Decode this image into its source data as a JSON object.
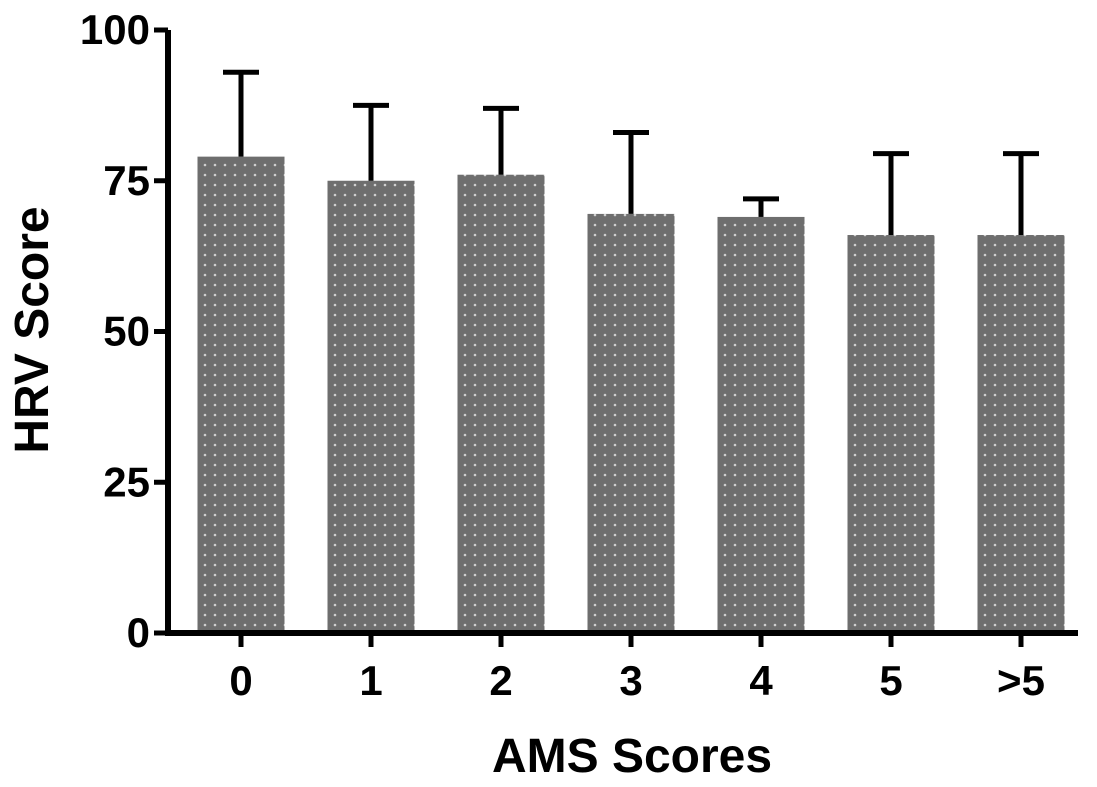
{
  "chart_data": {
    "type": "bar",
    "title": "",
    "xlabel": "AMS Scores",
    "ylabel": "HRV Score",
    "categories": [
      "0",
      "1",
      "2",
      "3",
      "4",
      "5",
      ">5"
    ],
    "values": [
      79,
      75,
      76,
      69.5,
      69,
      66,
      66
    ],
    "error_upper": [
      93,
      87.5,
      87,
      83,
      72,
      79.5,
      79.5
    ],
    "ylim": [
      0,
      100
    ],
    "yticks": [
      0,
      25,
      50,
      75,
      100
    ],
    "ytick_labels": [
      "0",
      "25",
      "50",
      "75",
      "100"
    ],
    "grid": false,
    "legend": "none",
    "bar_color": "#6e6e6e",
    "dot_color": "#cfcfcf",
    "axis_color": "#000000"
  }
}
